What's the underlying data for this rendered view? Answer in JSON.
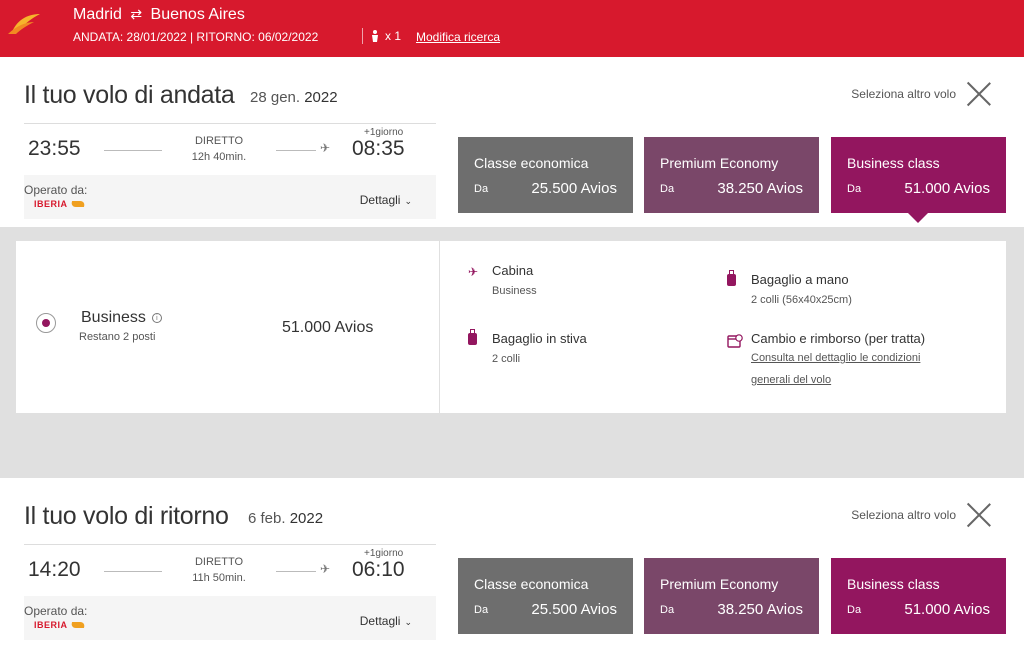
{
  "header": {
    "origin": "Madrid",
    "swap_icon": "⇄",
    "destination": "Buenos Aires",
    "dates": "ANDATA: 28/01/2022 | RITORNO: 06/02/2022",
    "passenger_icon": "person-icon",
    "passengers": "x 1",
    "modify": "Modifica ricerca"
  },
  "outbound": {
    "title": "Il tuo volo di andata",
    "date_day": "28 gen.",
    "date_year": "2022",
    "select_other": "Seleziona altro volo",
    "depart": "23:55",
    "arrive": "08:35",
    "type": "DIRETTO",
    "duration": "12h 40min.",
    "plus_day": "+1giorno",
    "operated_by": "Operato da:",
    "operator": "IBERIA",
    "details": "Dettagli",
    "fares": [
      {
        "name": "Classe economica",
        "from": "Da",
        "price": "25.500 Avios"
      },
      {
        "name": "Premium Economy",
        "from": "Da",
        "price": "38.250 Avios"
      },
      {
        "name": "Business class",
        "from": "Da",
        "price": "51.000 Avios"
      }
    ],
    "selected": {
      "name": "Business",
      "remaining": "Restano 2 posti",
      "price": "51.000 Avios",
      "features": {
        "cabin_title": "Cabina",
        "cabin_sub": "Business",
        "hand_title": "Bagaglio a mano",
        "hand_sub": "2 colli (56x40x25cm)",
        "hold_title": "Bagaglio in stiva",
        "hold_sub": "2 colli",
        "change_title": "Cambio e rimborso (per tratta)",
        "change_link": "Consulta nel dettaglio le condizioni generali del volo"
      }
    }
  },
  "return": {
    "title": "Il tuo volo di ritorno",
    "date_day": "6 feb.",
    "date_year": "2022",
    "select_other": "Seleziona altro volo",
    "depart": "14:20",
    "arrive": "06:10",
    "type": "DIRETTO",
    "duration": "11h 50min.",
    "plus_day": "+1giorno",
    "operated_by": "Operato da:",
    "operator": "IBERIA",
    "details": "Dettagli",
    "fares": [
      {
        "name": "Classe economica",
        "from": "Da",
        "price": "25.500 Avios"
      },
      {
        "name": "Premium Economy",
        "from": "Da",
        "price": "38.250 Avios"
      },
      {
        "name": "Business class",
        "from": "Da",
        "price": "51.000 Avios"
      }
    ]
  },
  "colors": {
    "brand_red": "#d7192d",
    "economy": "#6e6e6e",
    "premium": "#7a4769",
    "business": "#93165f"
  }
}
